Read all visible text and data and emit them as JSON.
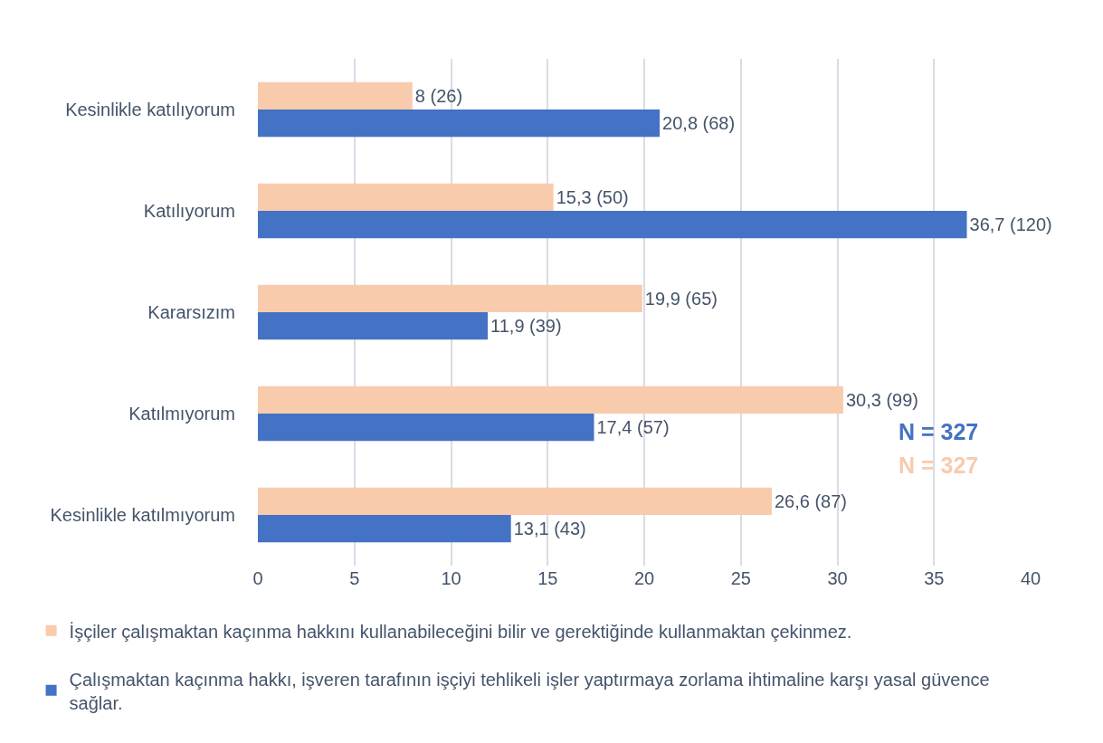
{
  "chart_data": {
    "type": "bar",
    "orientation": "horizontal",
    "categories": [
      "Kesinlikle katılıyorum",
      "Katılıyorum",
      "Kararsızım",
      "Katılmıyorum",
      "Kesinlikle katılmıyorum"
    ],
    "series": [
      {
        "name": "İşçiler çalışmaktan kaçınma hakkını kullanabileceğini bilir ve gerektiğinde kullanmaktan çekinmez.",
        "color": "#f8cbad",
        "values": [
          8,
          15.3,
          19.9,
          30.3,
          26.6
        ],
        "value_labels": [
          "8 (26)",
          "15,3 (50)",
          "19,9 (65)",
          "30,3 (99)",
          "26,6 (87)"
        ]
      },
      {
        "name": "Çalışmaktan kaçınma hakkı, işveren tarafının işçiyi tehlikeli işler yaptırmaya zorlama ihtimaline karşı yasal güvence sağlar.",
        "color": "#4472c4",
        "values": [
          20.8,
          36.7,
          11.9,
          17.4,
          13.1
        ],
        "value_labels": [
          "20,8 (68)",
          "36,7 (120)",
          "11,9 (39)",
          "17,4 (57)",
          "13,1 (43)"
        ]
      }
    ],
    "xlim": [
      0,
      40
    ],
    "xticks": [
      0,
      5,
      10,
      15,
      20,
      25,
      30,
      35,
      40
    ],
    "grid": "x",
    "legend": "bottom",
    "annotations": [
      "N = 327",
      "N = 327"
    ]
  }
}
